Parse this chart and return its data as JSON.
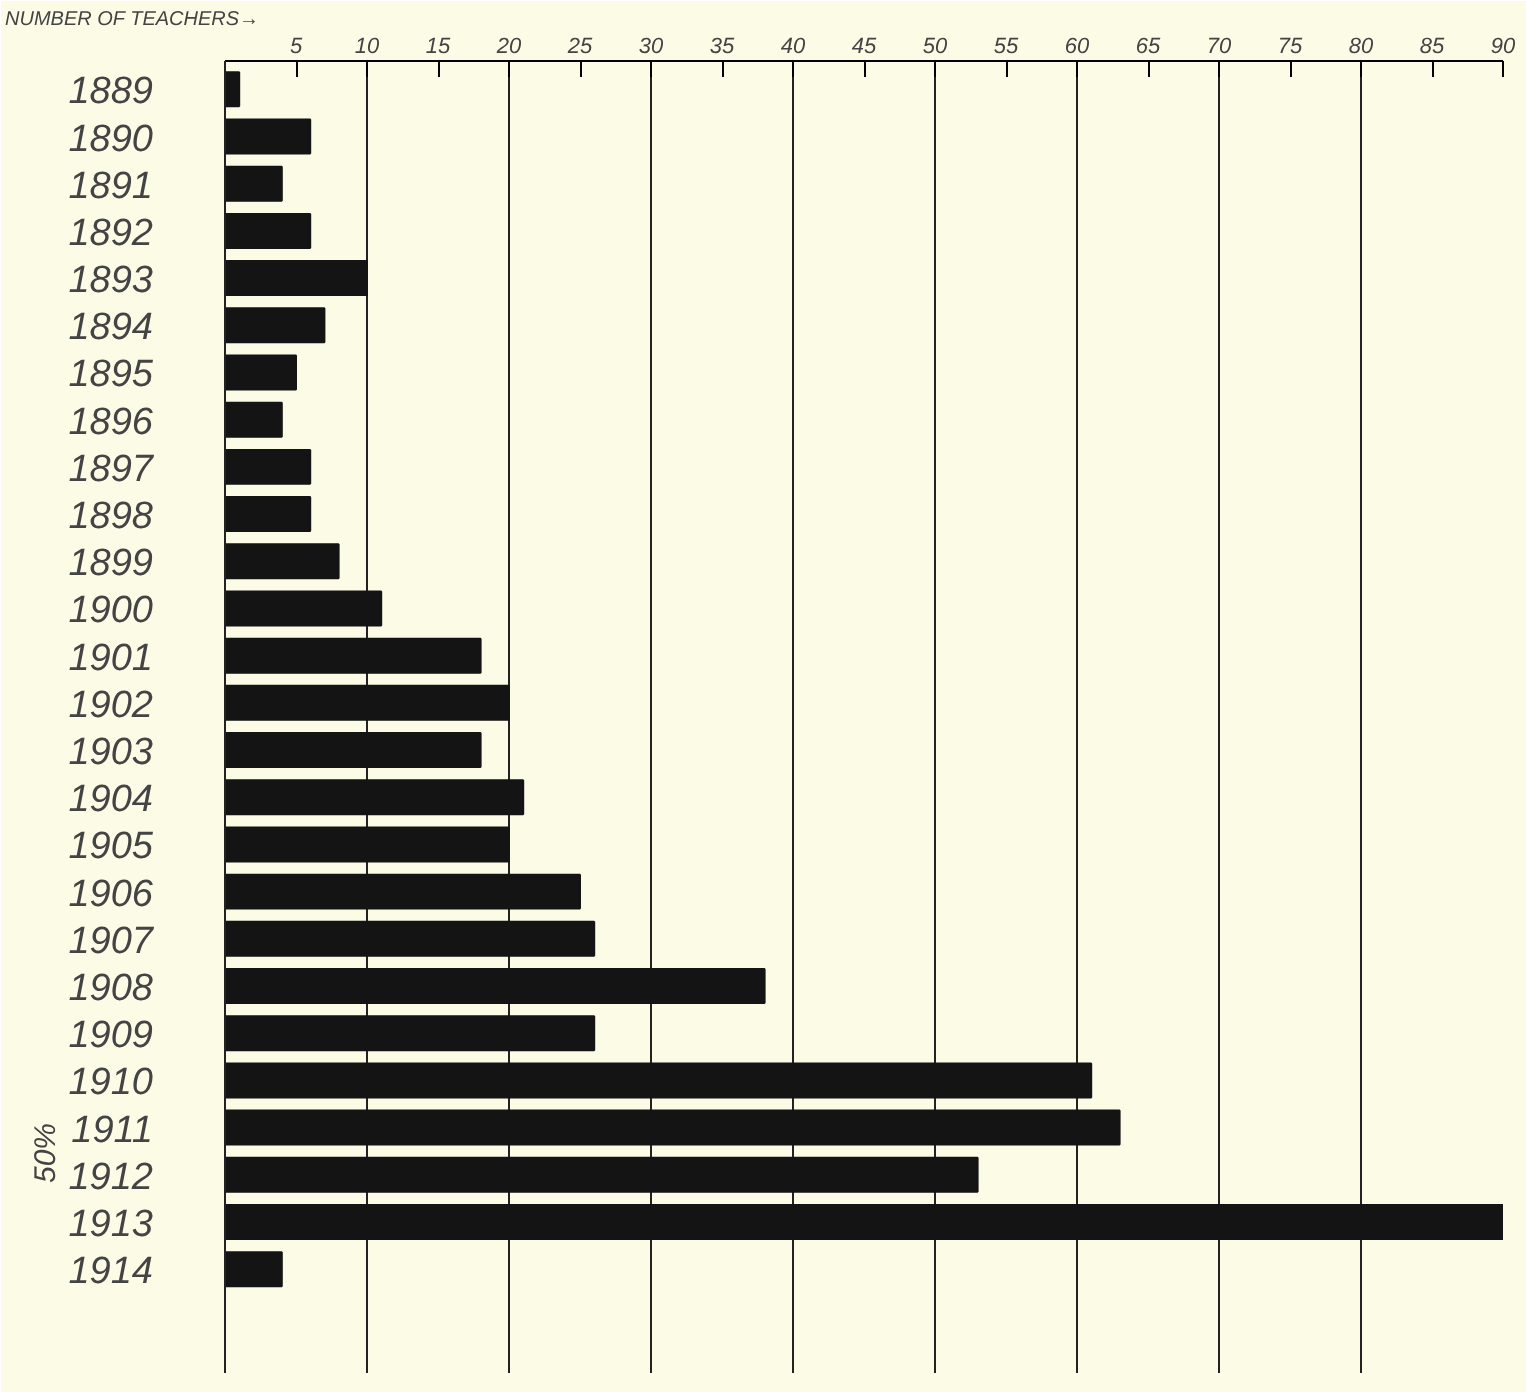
{
  "chart_data": {
    "type": "bar",
    "orientation": "horizontal",
    "xlabel": "NUMBER OF TEACHERS→",
    "categories": [
      "1889",
      "1890",
      "1891",
      "1892",
      "1893",
      "1894",
      "1895",
      "1896",
      "1897",
      "1898",
      "1899",
      "1900",
      "1901",
      "1902",
      "1903",
      "1904",
      "1905",
      "1906",
      "1907",
      "1908",
      "1909",
      "1910",
      "1911",
      "1912",
      "1913",
      "1914"
    ],
    "values": [
      1,
      6,
      4,
      6,
      10,
      7,
      5,
      4,
      6,
      6,
      8,
      11,
      18,
      20,
      18,
      21,
      20,
      25,
      26,
      38,
      26,
      61,
      63,
      53,
      90,
      4
    ],
    "color": "#141414",
    "xlim": [
      0,
      90
    ],
    "xticks": [
      5,
      10,
      15,
      20,
      25,
      30,
      35,
      40,
      45,
      50,
      55,
      60,
      65,
      70,
      75,
      80,
      85,
      90
    ],
    "grid": "x",
    "annotations": [
      "50%"
    ]
  }
}
